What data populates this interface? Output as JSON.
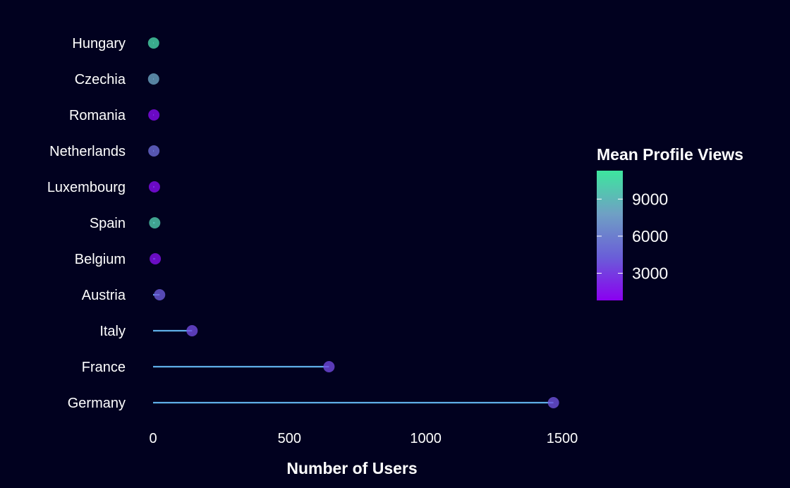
{
  "chart_data": {
    "type": "lollipop",
    "xlabel": "Number of Users",
    "ylabel": "",
    "xlim": [
      0,
      1500
    ],
    "x_ticks": [
      0,
      500,
      1000,
      1500
    ],
    "grid": false,
    "categories": [
      "Hungary",
      "Czechia",
      "Romania",
      "Netherlands",
      "Luxembourg",
      "Spain",
      "Belgium",
      "Austria",
      "Italy",
      "France",
      "Germany"
    ],
    "values": [
      2,
      2,
      3,
      3,
      5,
      6,
      8,
      24,
      143,
      645,
      1468
    ],
    "color_values": [
      10500,
      8000,
      1200,
      5000,
      1300,
      10000,
      1400,
      4200,
      3600,
      3500,
      3900
    ],
    "line_color": "#5fb0e8",
    "legend": {
      "title": "Mean Profile Views",
      "placement": "right",
      "range": [
        800,
        11300
      ],
      "ticks": [
        3000,
        6000,
        9000
      ],
      "colors": [
        "#8a00f0",
        "#6a5ed8",
        "#6fa0c4",
        "#3de69e"
      ]
    }
  }
}
